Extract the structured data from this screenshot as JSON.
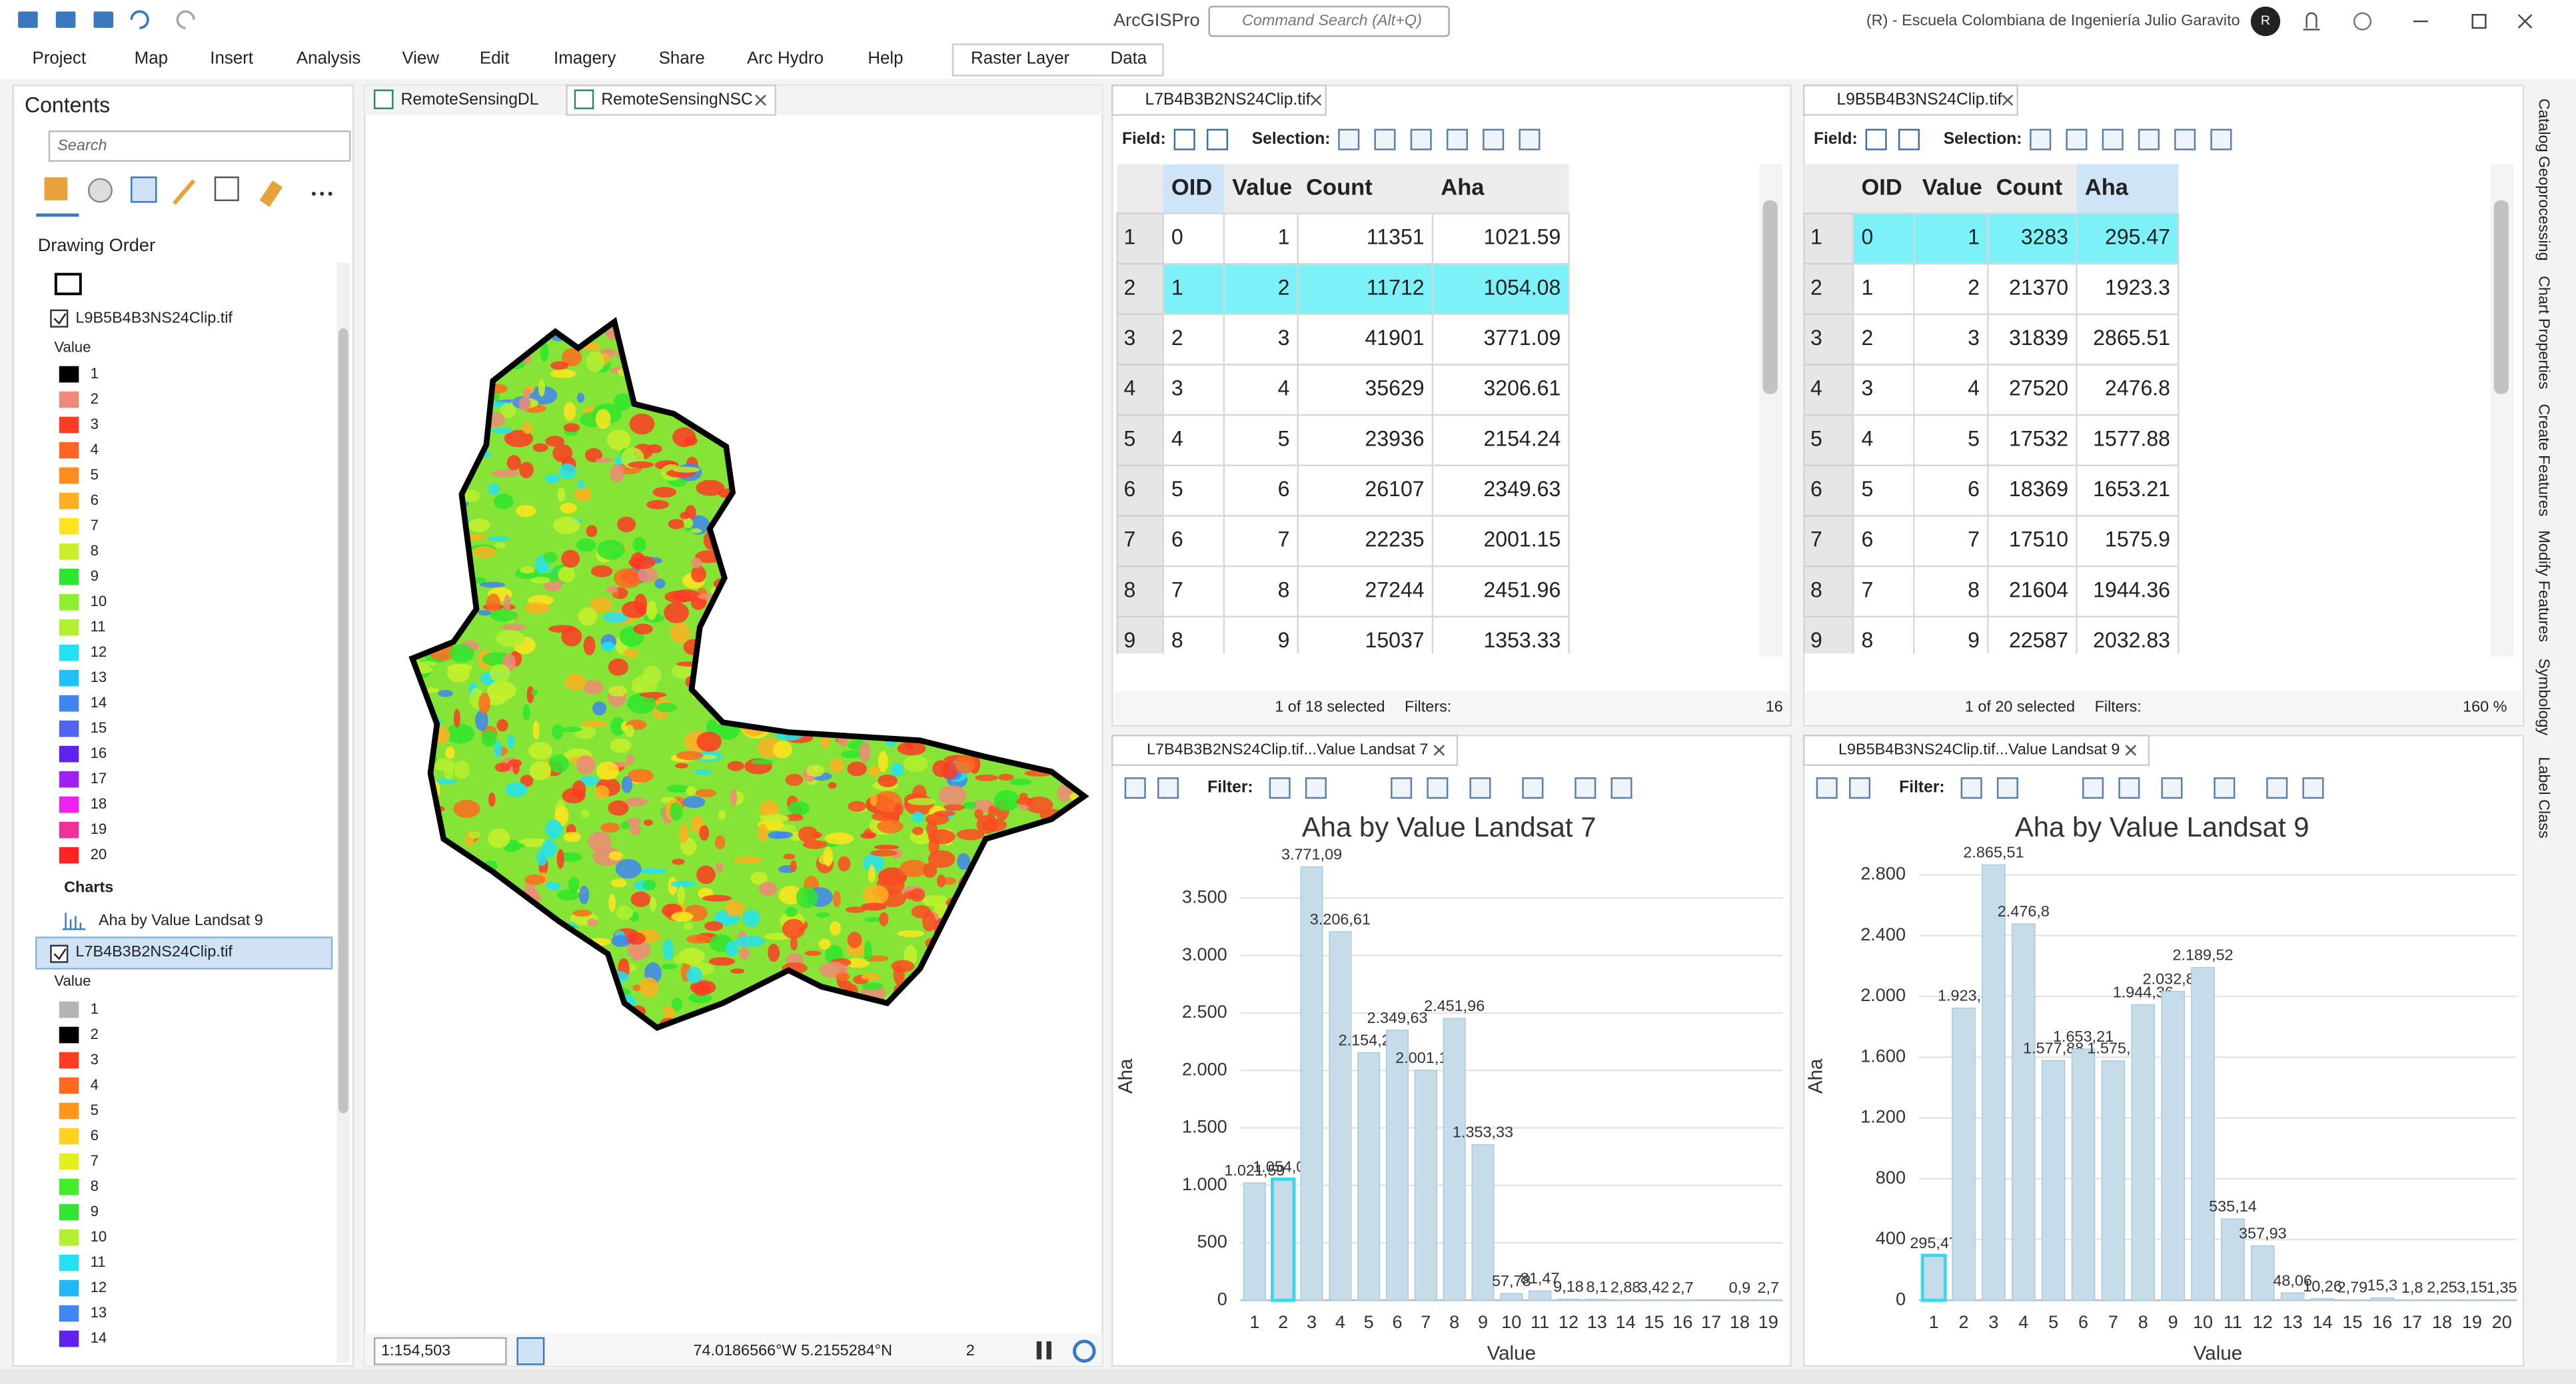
{
  "app": {
    "title": "ArcGISPro",
    "search": "Command Search (Alt+Q)",
    "account": "(R) - Escuela Colombiana de Ingeniería Julio Garavito",
    "avatar": "R"
  },
  "menu": [
    "Project",
    "Map",
    "Insert",
    "Analysis",
    "View",
    "Edit",
    "Imagery",
    "Share",
    "Arc Hydro",
    "Help",
    "Raster Layer",
    "Data"
  ],
  "contents": {
    "title": "Contents",
    "search": "Search",
    "drawing_order": "Drawing Order",
    "layers": [
      {
        "name": "L9B5B4B3NS24Clip.tif",
        "field": "Value",
        "classes": [
          {
            "label": "1",
            "color": "#000000"
          },
          {
            "label": "2",
            "color": "#f08a78"
          },
          {
            "label": "3",
            "color": "#ff3b22"
          },
          {
            "label": "4",
            "color": "#ff6420"
          },
          {
            "label": "5",
            "color": "#ff8c1c"
          },
          {
            "label": "6",
            "color": "#ffb020"
          },
          {
            "label": "7",
            "color": "#ffe41e"
          },
          {
            "label": "8",
            "color": "#c8f02a"
          },
          {
            "label": "9",
            "color": "#2ee62e"
          },
          {
            "label": "10",
            "color": "#8cf02a"
          },
          {
            "label": "11",
            "color": "#b4f030"
          },
          {
            "label": "12",
            "color": "#22e2f2"
          },
          {
            "label": "13",
            "color": "#22c0f8"
          },
          {
            "label": "14",
            "color": "#3f86f2"
          },
          {
            "label": "15",
            "color": "#5064f0"
          },
          {
            "label": "16",
            "color": "#6222ee"
          },
          {
            "label": "17",
            "color": "#a022f0"
          },
          {
            "label": "18",
            "color": "#ee22ee"
          },
          {
            "label": "19",
            "color": "#f0309a"
          },
          {
            "label": "20",
            "color": "#ff2222"
          }
        ]
      },
      {
        "name": "L7B4B3B2NS24Clip.tif",
        "field": "Value",
        "classes": [
          {
            "label": "1",
            "color": "#b4b4b4"
          },
          {
            "label": "2",
            "color": "#000000"
          },
          {
            "label": "3",
            "color": "#ff3b22"
          },
          {
            "label": "4",
            "color": "#ff6a1e"
          },
          {
            "label": "5",
            "color": "#ff961c"
          },
          {
            "label": "6",
            "color": "#ffd21e"
          },
          {
            "label": "7",
            "color": "#e4f01e"
          },
          {
            "label": "8",
            "color": "#44ec2a"
          },
          {
            "label": "9",
            "color": "#30e630"
          },
          {
            "label": "10",
            "color": "#b4f030"
          },
          {
            "label": "11",
            "color": "#22e2f2"
          },
          {
            "label": "12",
            "color": "#22b8f8"
          },
          {
            "label": "13",
            "color": "#3f86f2"
          },
          {
            "label": "14",
            "color": "#6222ee"
          }
        ]
      }
    ],
    "charts_heading": "Charts",
    "chart_item": "Aha by Value Landsat 9"
  },
  "map": {
    "tabs": [
      "RemoteSensingDL",
      "RemoteSensingNSC"
    ],
    "scale": "1:154,503",
    "coordinates": "74.0186566°W 5.2155284°N",
    "selected_count": "2"
  },
  "tables": [
    {
      "tab": "L7B4B3B2NS24Clip.tif",
      "field_label": "Field:",
      "selection_label": "Selection:",
      "columns": [
        "OID",
        "Value",
        "Count",
        "Aha"
      ],
      "highlight_column": 0,
      "selected_row": 1,
      "rows": [
        {
          "n": 1,
          "cells": [
            0,
            1,
            11351,
            1021.59
          ]
        },
        {
          "n": 2,
          "cells": [
            1,
            2,
            11712,
            1054.08
          ]
        },
        {
          "n": 3,
          "cells": [
            2,
            3,
            41901,
            3771.09
          ]
        },
        {
          "n": 4,
          "cells": [
            3,
            4,
            35629,
            3206.61
          ]
        },
        {
          "n": 5,
          "cells": [
            4,
            5,
            23936,
            2154.24
          ]
        },
        {
          "n": 6,
          "cells": [
            5,
            6,
            26107,
            2349.63
          ]
        },
        {
          "n": 7,
          "cells": [
            6,
            7,
            22235,
            2001.15
          ]
        },
        {
          "n": 8,
          "cells": [
            7,
            8,
            27244,
            2451.96
          ]
        },
        {
          "n": 9,
          "cells": [
            8,
            9,
            15037,
            1353.33
          ]
        }
      ],
      "status": "1 of 18 selected",
      "filters": "Filters:",
      "zoom": "16"
    },
    {
      "tab": "L9B5B4B3NS24Clip.tif",
      "field_label": "Field:",
      "selection_label": "Selection:",
      "columns": [
        "OID",
        "Value",
        "Count",
        "Aha"
      ],
      "highlight_column": 3,
      "selected_row": 0,
      "rows": [
        {
          "n": 1,
          "cells": [
            0,
            1,
            3283,
            295.47
          ]
        },
        {
          "n": 2,
          "cells": [
            1,
            2,
            21370,
            1923.3
          ]
        },
        {
          "n": 3,
          "cells": [
            2,
            3,
            31839,
            2865.51
          ]
        },
        {
          "n": 4,
          "cells": [
            3,
            4,
            27520,
            2476.8
          ]
        },
        {
          "n": 5,
          "cells": [
            4,
            5,
            17532,
            1577.88
          ]
        },
        {
          "n": 6,
          "cells": [
            5,
            6,
            18369,
            1653.21
          ]
        },
        {
          "n": 7,
          "cells": [
            6,
            7,
            17510,
            1575.9
          ]
        },
        {
          "n": 8,
          "cells": [
            7,
            8,
            21604,
            1944.36
          ]
        },
        {
          "n": 9,
          "cells": [
            8,
            9,
            22587,
            2032.83
          ]
        }
      ],
      "status": "1 of 20 selected",
      "filters": "Filters:",
      "zoom": "160 %"
    }
  ],
  "chart_panes": [
    {
      "tab": "L7B4B3B2NS24Clip.tif...Value Landsat 7",
      "filter": "Filter:"
    },
    {
      "tab": "L9B5B4B3NS24Clip.tif...Value Landsat 9",
      "filter": "Filter:"
    }
  ],
  "chart_data": [
    {
      "type": "bar",
      "title": "Aha by Value Landsat 7",
      "x_label": "Value",
      "y_label": "Aha",
      "color": "#c6dde9",
      "highlight_index": 1,
      "highlight_color": "#3ad8ea",
      "grid": true,
      "categories": [
        "1",
        "2",
        "3",
        "4",
        "5",
        "6",
        "7",
        "8",
        "9",
        "10",
        "11",
        "12",
        "13",
        "14",
        "15",
        "16",
        "17",
        "18",
        "19"
      ],
      "values": [
        1021.59,
        1054.08,
        3771.09,
        3206.61,
        2154.24,
        2349.63,
        2001.15,
        2451.96,
        1353.33,
        57.78,
        81.47,
        9.18,
        8.1,
        2.88,
        3.42,
        2.7,
        null,
        0.9,
        2.7
      ],
      "value_labels": [
        "1.021,59",
        "1.054,08",
        "3.771,09",
        "3.206,61",
        "2.154,24",
        "2.349,63",
        "2.001,15",
        "2.451,96",
        "1.353,33",
        "57,78",
        "81,47",
        "9,18",
        "8,1",
        "2,88",
        "3,42",
        "2,7",
        null,
        "0,9",
        "2,7"
      ],
      "ylim": [
        0,
        3900
      ],
      "yticks": [
        0,
        500,
        {
          "value": 1000,
          "label": "1.000"
        },
        {
          "value": 1500,
          "label": "1.500"
        },
        {
          "value": 2000,
          "label": "2.000"
        },
        {
          "value": 2500,
          "label": "2.500"
        },
        {
          "value": 3000,
          "label": "3.000"
        },
        {
          "value": 3500,
          "label": "3.500"
        }
      ]
    },
    {
      "type": "bar",
      "title": "Aha by Value Landsat 9",
      "x_label": "Value",
      "y_label": "Aha",
      "color": "#c6dde9",
      "highlight_index": 0,
      "highlight_color": "#3ad8ea",
      "grid": true,
      "categories": [
        "1",
        "2",
        "3",
        "4",
        "5",
        "6",
        "7",
        "8",
        "9",
        "10",
        "11",
        "12",
        "13",
        "14",
        "15",
        "16",
        "17",
        "18",
        "19",
        "20"
      ],
      "values": [
        295.47,
        1923.3,
        2865.51,
        2476.8,
        1577.88,
        1653.21,
        1575.9,
        1944.36,
        2032.83,
        2189.52,
        535.14,
        357.93,
        48.06,
        10.26,
        2.79,
        15.3,
        1.8,
        2.25,
        3.15,
        1.35
      ],
      "value_labels": [
        "295,47",
        "1.923,3",
        "2.865,51",
        "2.476,8",
        "1.577,88",
        "1.653,21",
        "1.575,9",
        "1.944,36",
        "2.032,83",
        "2.189,52",
        "535,14",
        "357,93",
        "48,06",
        "10,26",
        "2,79",
        "15,3",
        "1,8",
        "2,25",
        "3,15",
        "1,35"
      ],
      "ylim": [
        0,
        2950
      ],
      "yticks": [
        0,
        400,
        800,
        {
          "value": 1200,
          "label": "1.200"
        },
        {
          "value": 1600,
          "label": "1.600"
        },
        {
          "value": 2000,
          "label": "2.000"
        },
        {
          "value": 2400,
          "label": "2.400"
        },
        {
          "value": 2800,
          "label": "2.800"
        }
      ]
    }
  ],
  "side_tabs": [
    "Catalog",
    "Geoprocessing",
    "Chart Properties",
    "Create Features",
    "Modify Features",
    "Symbology",
    "Label Class"
  ]
}
